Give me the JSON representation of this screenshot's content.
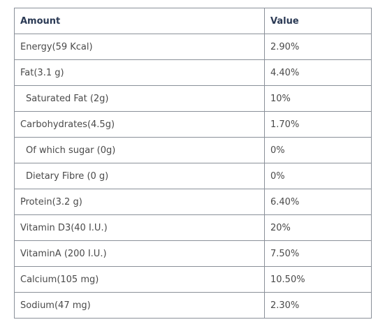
{
  "table": {
    "headers": {
      "amount": "Amount",
      "value": "Value"
    },
    "rows": [
      {
        "amount": "Energy(59 Kcal)",
        "value": "2.90%",
        "indent": false
      },
      {
        "amount": "Fat(3.1 g)",
        "value": "4.40%",
        "indent": false
      },
      {
        "amount": "Saturated Fat (2g)",
        "value": "10%",
        "indent": true
      },
      {
        "amount": "Carbohydrates(4.5g)",
        "value": "1.70%",
        "indent": false
      },
      {
        "amount": "Of which sugar (0g)",
        "value": "0%",
        "indent": true
      },
      {
        "amount": "Dietary Fibre (0 g)",
        "value": "0%",
        "indent": true
      },
      {
        "amount": "Protein(3.2 g)",
        "value": "6.40%",
        "indent": false
      },
      {
        "amount": "Vitamin D3(40 I.U.)",
        "value": "20%",
        "indent": false
      },
      {
        "amount": "VitaminA (200 I.U.)",
        "value": "7.50%",
        "indent": false
      },
      {
        "amount": "Calcium(105 mg)",
        "value": "10.50%",
        "indent": false
      },
      {
        "amount": "Sodium(47 mg)",
        "value": "2.30%",
        "indent": false
      }
    ]
  },
  "colors": {
    "header_text": "#2b3a55",
    "body_text": "#4a4a4a",
    "border": "#8a9099",
    "background": "#ffffff"
  }
}
